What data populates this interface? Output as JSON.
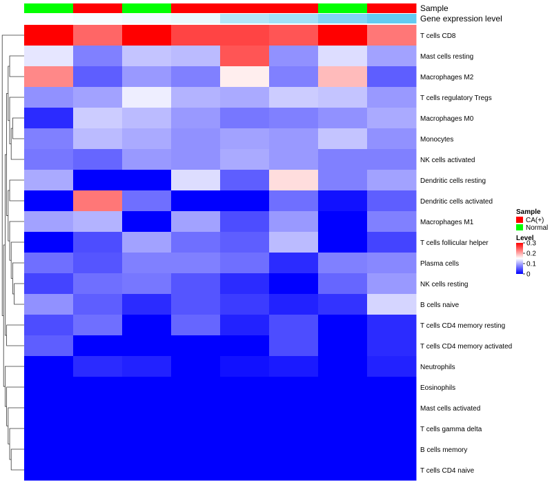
{
  "chart_data": {
    "type": "heatmap",
    "title": "",
    "annotations": [
      {
        "label": "Sample",
        "values": [
          "Normal",
          "CA(+)",
          "Normal",
          "CA(+)",
          "CA(+)",
          "CA(+)",
          "Normal",
          "CA(+)"
        ],
        "legend_entries": [
          {
            "label": "CA(+)",
            "color": "#ff0000"
          },
          {
            "label": "Normal",
            "color": "#00ff00"
          }
        ]
      },
      {
        "label": "Gene expression level",
        "values": [
          0.02,
          0.05,
          0.08,
          0.12,
          0.45,
          0.55,
          0.75,
          0.92
        ]
      }
    ],
    "rows": [
      "T cells CD8",
      "Mast cells resting",
      "Macrophages M2",
      "T cells regulatory  Tregs",
      "Macrophages M0",
      "Monocytes",
      "NK cells activated",
      "Dendritic cells resting",
      "Dendritic cells activated",
      "Macrophages M1",
      "T cells follicular helper",
      "Plasma cells",
      "NK cells resting",
      "B cells naive",
      "T cells CD4 memory resting",
      "T cells CD4 memory activated",
      "Neutrophils",
      "Eosinophils",
      "Mast cells activated",
      "T cells gamma delta",
      "B cells memory",
      "T cells CD4 naive"
    ],
    "values": [
      [
        0.3,
        0.24,
        0.3,
        0.26,
        0.26,
        0.25,
        0.3,
        0.23
      ],
      [
        0.135,
        0.075,
        0.115,
        0.11,
        0.25,
        0.085,
        0.13,
        0.095
      ],
      [
        0.22,
        0.055,
        0.09,
        0.075,
        0.16,
        0.075,
        0.19,
        0.055
      ],
      [
        0.085,
        0.095,
        0.14,
        0.105,
        0.1,
        0.12,
        0.115,
        0.09
      ],
      [
        0.025,
        0.12,
        0.11,
        0.09,
        0.07,
        0.075,
        0.085,
        0.1
      ],
      [
        0.075,
        0.11,
        0.1,
        0.085,
        0.095,
        0.09,
        0.115,
        0.085
      ],
      [
        0.07,
        0.06,
        0.09,
        0.085,
        0.1,
        0.09,
        0.075,
        0.075
      ],
      [
        0.1,
        0.0,
        0.0,
        0.13,
        0.055,
        0.17,
        0.075,
        0.095
      ],
      [
        0.0,
        0.23,
        0.065,
        0.0,
        0.0,
        0.065,
        0.01,
        0.055
      ],
      [
        0.095,
        0.105,
        0.0,
        0.095,
        0.045,
        0.09,
        0.0,
        0.075
      ],
      [
        0.0,
        0.045,
        0.095,
        0.065,
        0.055,
        0.11,
        0.0,
        0.04
      ],
      [
        0.065,
        0.05,
        0.075,
        0.075,
        0.065,
        0.025,
        0.075,
        0.08
      ],
      [
        0.04,
        0.065,
        0.07,
        0.05,
        0.025,
        0.0,
        0.06,
        0.09
      ],
      [
        0.085,
        0.055,
        0.025,
        0.05,
        0.035,
        0.02,
        0.03,
        0.125
      ],
      [
        0.045,
        0.065,
        0.0,
        0.06,
        0.02,
        0.045,
        0.0,
        0.025
      ],
      [
        0.055,
        0.0,
        0.0,
        0.0,
        0.0,
        0.045,
        0.0,
        0.025
      ],
      [
        0.0,
        0.025,
        0.02,
        0.0,
        0.01,
        0.015,
        0.0,
        0.02
      ],
      [
        0.0,
        0.0,
        0.0,
        0.0,
        0.0,
        0.0,
        0.0,
        0.0
      ],
      [
        0.0,
        0.0,
        0.0,
        0.0,
        0.0,
        0.0,
        0.0,
        0.0
      ],
      [
        0.0,
        0.0,
        0.0,
        0.0,
        0.0,
        0.0,
        0.0,
        0.0
      ],
      [
        0.0,
        0.0,
        0.0,
        0.0,
        0.0,
        0.0,
        0.0,
        0.0
      ],
      [
        0.0,
        0.0,
        0.0,
        0.0,
        0.0,
        0.0,
        0.0,
        0.0
      ]
    ],
    "color_scale": {
      "title": "Level",
      "range": [
        0,
        0.3
      ],
      "ticks": [
        "0",
        "0.1",
        "0.2",
        "0.3"
      ],
      "low": "#0000ff",
      "mid": "#ffffff",
      "mid_value": 0.15,
      "high": "#ff0000"
    },
    "annotation_scale": {
      "low": "#ffffff",
      "high": "#56c6f0"
    },
    "row_dendrogram": true,
    "col_dendrogram": false
  }
}
